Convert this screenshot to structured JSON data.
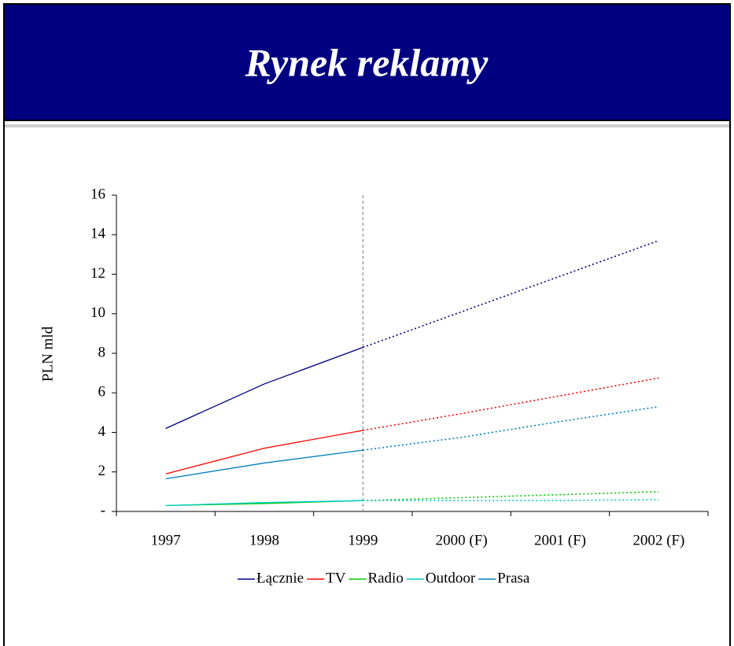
{
  "chart_data": {
    "type": "line",
    "title": "Rynek reklamy",
    "ylabel": "PLN mld",
    "categories": [
      "1997",
      "1998",
      "1999",
      "2000 (F)",
      "2001 (F)",
      "2002 (F)"
    ],
    "series": [
      {
        "name": "Łącznie",
        "color": "#000080",
        "values": [
          4.2,
          6.45,
          8.3,
          10.1,
          11.9,
          13.7
        ]
      },
      {
        "name": "TV",
        "color": "#ff0000",
        "values": [
          1.9,
          3.2,
          4.1,
          4.95,
          5.85,
          6.75
        ]
      },
      {
        "name": "Radio",
        "color": "#00cc00",
        "values": [
          0.3,
          0.4,
          0.55,
          0.7,
          0.85,
          1.0
        ]
      },
      {
        "name": "Outdoor",
        "color": "#00cccc",
        "values": [
          0.3,
          0.45,
          0.55,
          0.55,
          0.55,
          0.6
        ]
      },
      {
        "name": "Prasa",
        "color": "#0080c0",
        "values": [
          1.65,
          2.45,
          3.1,
          3.75,
          4.55,
          5.3
        ]
      }
    ],
    "ylim": [
      0,
      16
    ],
    "yticks": [
      {
        "value": 0,
        "label": "-"
      },
      2,
      4,
      6,
      8,
      10,
      12,
      14,
      16
    ],
    "forecast_from_index": 2,
    "legend": "bottom"
  }
}
